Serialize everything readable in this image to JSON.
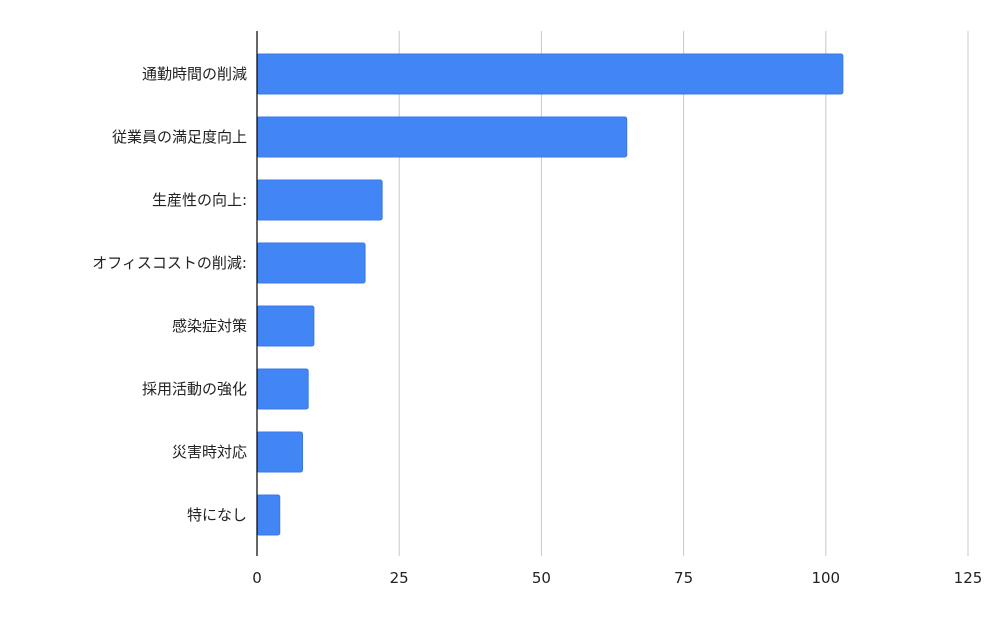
{
  "chart_data": {
    "type": "bar",
    "orientation": "horizontal",
    "title": "",
    "xlabel": "",
    "ylabel": "",
    "categories": [
      "通勤時間の削減",
      "従業員の満足度向上",
      "生産性の向上:",
      "オフィスコストの削減:",
      "感染症対策",
      "採用活動の強化",
      "災害時対応",
      "特になし"
    ],
    "values": [
      103,
      65,
      22,
      19,
      10,
      9,
      8,
      4
    ],
    "xlim": [
      0,
      125
    ],
    "xticks": [
      "0",
      "25",
      "50",
      "75",
      "100",
      "125"
    ],
    "xtick_values": [
      0,
      25,
      50,
      75,
      100,
      125
    ],
    "grid": "vertical",
    "legend": "none",
    "colors": {
      "bar": "#4285f4",
      "bar_stroke": "#3b78e7",
      "grid": "#c8c8c8",
      "axis": "#000000"
    }
  }
}
